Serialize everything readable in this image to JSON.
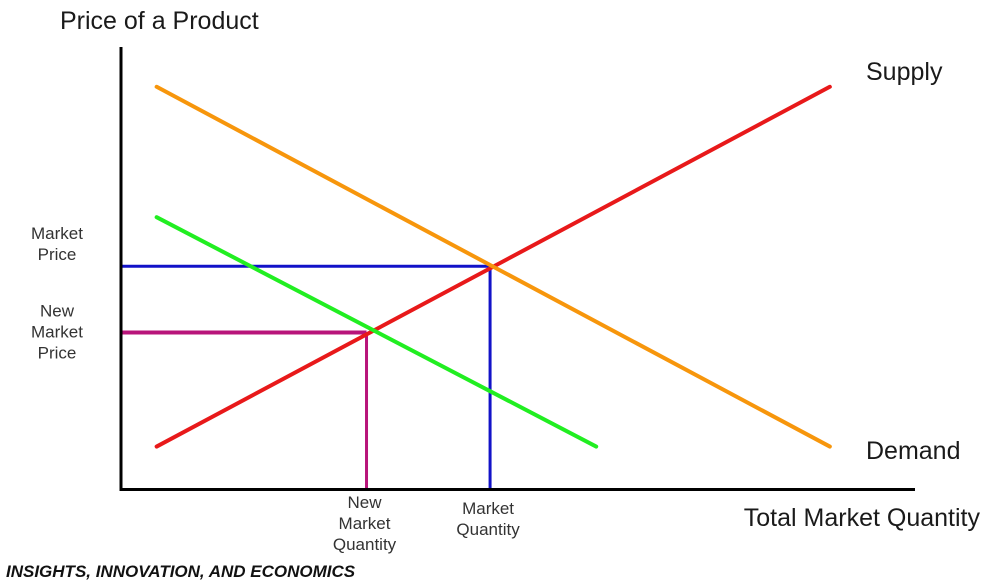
{
  "chart_data": {
    "type": "line",
    "ylabel": "Price of a Product",
    "xlabel": "Total Market Quantity",
    "footer": "INSIGHTS, INNOVATION, AND ECONOMICS",
    "xlim": [
      0,
      100
    ],
    "ylim": [
      0,
      100
    ],
    "series": [
      {
        "name": "Supply",
        "color": "#e8191a",
        "x": [
          4.5,
          89.5
        ],
        "y": [
          9.6,
          91.0
        ]
      },
      {
        "name": "Demand",
        "color": "#f7960c",
        "x": [
          4.5,
          89.5
        ],
        "y": [
          91.0,
          9.6
        ]
      },
      {
        "color": "#21ee21",
        "x": [
          4.5,
          60.0
        ],
        "y": [
          61.5,
          9.6
        ]
      }
    ],
    "guides": [
      {
        "label": "Market Price",
        "x_label": "Market Quantity",
        "color": "#1212c8",
        "x": 46.6,
        "y": 50.4
      },
      {
        "label": "New Market Price",
        "x_label": "New Market Quantity",
        "color": "#b8147a",
        "x": 31.0,
        "y": 35.4
      }
    ]
  }
}
